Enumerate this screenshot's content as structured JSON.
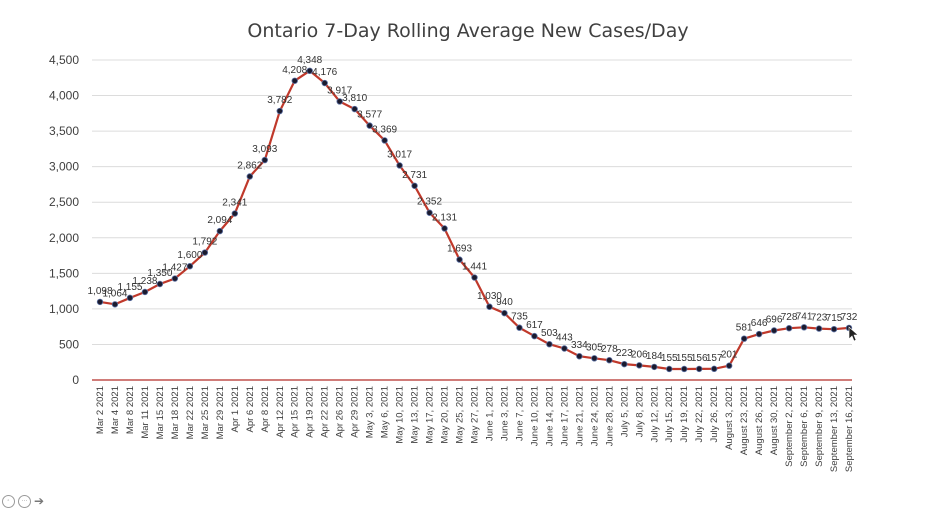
{
  "chart_data": {
    "type": "line",
    "title": "Ontario 7-Day Rolling Average New Cases/Day",
    "xlabel": "",
    "ylabel": "",
    "ylim": [
      0,
      4500
    ],
    "yticks": [
      "0",
      "500",
      "1,000",
      "1,500",
      "2,000",
      "2,500",
      "3,000",
      "3,500",
      "4,000",
      "4,500"
    ],
    "grid": true,
    "legend": "none",
    "line_color": "#c0392b",
    "marker_color": "#1a1a2e",
    "axis_color": "#c0504d",
    "categories": [
      "Mar 2 2021",
      "Mar 4 2021",
      "Mar 8 2021",
      "Mar 11 2021",
      "Mar 15 2021",
      "Mar 18 2021",
      "Mar 22 2021",
      "Mar 25 2021",
      "Mar 29 2021",
      "Apr 1 2021",
      "Apr 6 2021",
      "Apr 8 2021",
      "Apr 12 2021",
      "Apr 15 2021",
      "Apr 19 2021",
      "Apr 22 2021",
      "Apr 26 2021",
      "Apr 29 2021",
      "May 3, 2021",
      "May 6, 2021",
      "May 10, 2021",
      "May 13, 2021",
      "May 17, 2021",
      "May 20, 2021",
      "May 25, 2021",
      "May 27, 2021",
      "June 1, 2021",
      "June 3, 2021",
      "June 7, 2021",
      "June 10, 2021",
      "June 14, 2021",
      "June 17, 2021",
      "June 21, 2021",
      "June 24, 2021",
      "June 28, 2021",
      "July 5, 2021",
      "July 8, 2021",
      "July 12, 2021",
      "July 15, 2021",
      "July 19, 2021",
      "July 22, 2021",
      "July 26, 2021",
      "August 3, 2021",
      "August 23, 2021",
      "August 26, 2021",
      "August 30, 2021",
      "September 2, 2021",
      "September 6, 2021",
      "September 9, 2021",
      "September 13, 2021",
      "September 16, 2021"
    ],
    "values": [
      1098,
      1064,
      1155,
      1238,
      1350,
      1427,
      1600,
      1792,
      2094,
      2341,
      2862,
      3093,
      3782,
      4208,
      4348,
      4176,
      3917,
      3810,
      3577,
      3369,
      3017,
      2731,
      2352,
      2131,
      1693,
      1441,
      1030,
      940,
      735,
      617,
      503,
      443,
      334,
      305,
      278,
      223,
      206,
      184,
      155,
      155,
      156,
      157,
      201,
      581,
      646,
      696,
      728,
      741,
      723,
      715,
      732
    ],
    "data_labels": [
      "1,098",
      "1,064",
      "1,155",
      "1,238",
      "1,350",
      "1,427",
      "1,600",
      "1,792",
      "2,094",
      "2,341",
      "2,862",
      "3,093",
      "3,782",
      "4,208",
      "4,348",
      "4,176",
      "3,917",
      "3,810",
      "3,577",
      "3,369",
      "3,017",
      "2,731",
      "2,352",
      "2,131",
      "1,693",
      "1,441",
      "1,030",
      "940",
      "735",
      "617",
      "503",
      "443",
      "334",
      "305",
      "278",
      "223",
      "206",
      "184",
      "155",
      "155",
      "156",
      "157",
      "201",
      "581",
      "646",
      "696",
      "728",
      "741",
      "723",
      "715",
      "732"
    ]
  }
}
